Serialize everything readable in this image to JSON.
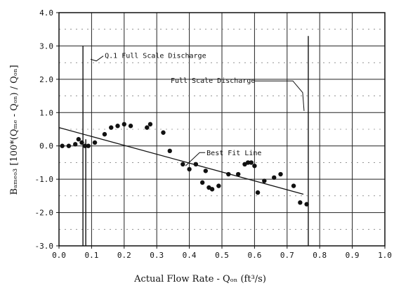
{
  "chart_data": {
    "type": "scatter",
    "title": "",
    "xlabel": "Actual Flow Rate - Qₒₙ (ft³/s)",
    "ylabel": "Bₐₘₑₒ₃ [100*(Qₘₑ - Qₒₙ) / Qₒₙ]",
    "xlim": [
      0.0,
      1.0
    ],
    "ylim": [
      -3.0,
      4.0
    ],
    "xticks": [
      "0.0",
      "0.1",
      "0.2",
      "0.3",
      "0.4",
      "0.5",
      "0.6",
      "0.7",
      "0.8",
      "0.9",
      "1.0"
    ],
    "yticks": [
      "4.0",
      "3.0",
      "2.0",
      "1.0",
      "0.0",
      "-1.0",
      "-2.0",
      "-3.0"
    ],
    "grid": true,
    "series": [
      {
        "type": "scatter",
        "x": [
          0.01,
          0.03,
          0.05,
          0.06,
          0.07,
          0.08,
          0.09,
          0.11,
          0.14,
          0.16,
          0.18,
          0.2,
          0.22,
          0.27,
          0.28,
          0.32,
          0.34,
          0.38,
          0.4,
          0.42,
          0.44,
          0.45,
          0.46,
          0.47,
          0.49,
          0.52,
          0.55,
          0.57,
          0.58,
          0.59,
          0.6,
          0.61,
          0.63,
          0.66,
          0.68,
          0.72,
          0.74,
          0.76
        ],
        "y": [
          0.0,
          0.0,
          0.05,
          0.2,
          0.1,
          0.0,
          0.0,
          0.1,
          0.35,
          0.55,
          0.6,
          0.65,
          0.6,
          0.55,
          0.65,
          0.4,
          -0.15,
          -0.55,
          -0.7,
          -0.55,
          -1.1,
          -0.75,
          -1.25,
          -1.3,
          -1.2,
          -0.85,
          -0.85,
          -0.55,
          -0.5,
          -0.5,
          -0.6,
          -1.4,
          -1.05,
          -0.95,
          -0.85,
          -1.2,
          -1.7,
          -1.75
        ]
      },
      {
        "name": "Best Fit Line",
        "type": "line",
        "x": [
          0.0,
          0.75
        ],
        "y": [
          0.55,
          -1.45
        ]
      }
    ],
    "annotations": [
      {
        "text": "Q.1 Full Scale Discharge",
        "x": 0.08
      },
      {
        "text": "Full Scale Discharge",
        "x": 0.765
      },
      {
        "text": "Best Fit Line",
        "x": 0.44
      }
    ]
  }
}
